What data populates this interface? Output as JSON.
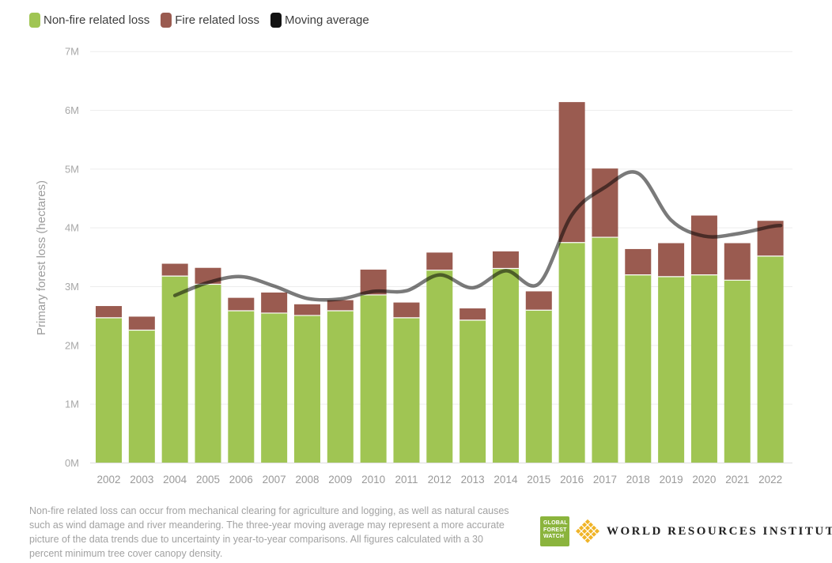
{
  "legend": {
    "items": [
      {
        "label": "Non-fire related loss",
        "swatch_color": "#a0c553"
      },
      {
        "label": "Fire related loss",
        "swatch_color": "#9a5b50"
      },
      {
        "label": "Moving average",
        "swatch_color": "#121212"
      }
    ]
  },
  "chart_data": {
    "type": "bar",
    "stacked": true,
    "title": "",
    "xlabel": "",
    "ylabel": "Primary forest loss (hectares)",
    "unit": "million hectares",
    "ylim": [
      0,
      7
    ],
    "y_ticks": [
      "0M",
      "1M",
      "2M",
      "3M",
      "4M",
      "5M",
      "6M",
      "7M"
    ],
    "grid": "horizontal",
    "legend_position": "top-left",
    "categories": [
      "2002",
      "2003",
      "2004",
      "2005",
      "2006",
      "2007",
      "2008",
      "2009",
      "2010",
      "2011",
      "2012",
      "2013",
      "2014",
      "2015",
      "2016",
      "2017",
      "2018",
      "2019",
      "2020",
      "2021",
      "2022"
    ],
    "series": [
      {
        "name": "Non-fire related loss",
        "type": "bar",
        "color": "#a0c553",
        "values": [
          2.47,
          2.26,
          3.18,
          3.04,
          2.59,
          2.55,
          2.51,
          2.59,
          2.86,
          2.47,
          3.28,
          2.43,
          3.31,
          2.6,
          3.75,
          3.84,
          3.2,
          3.17,
          3.2,
          3.11,
          3.52
        ]
      },
      {
        "name": "Fire related loss",
        "type": "bar",
        "color": "#9a5b50",
        "values": [
          0.2,
          0.23,
          0.21,
          0.28,
          0.22,
          0.35,
          0.19,
          0.18,
          0.43,
          0.26,
          0.3,
          0.2,
          0.29,
          0.32,
          2.39,
          1.17,
          0.44,
          0.57,
          1.01,
          0.63,
          0.6
        ]
      },
      {
        "name": "Moving average",
        "type": "line",
        "color": "#6b6b6b",
        "values": [
          null,
          null,
          2.85,
          3.07,
          3.17,
          3.01,
          2.8,
          2.79,
          2.92,
          2.93,
          3.2,
          2.98,
          3.27,
          3.05,
          4.22,
          4.69,
          4.93,
          4.13,
          3.86,
          3.9,
          4.02
        ]
      }
    ],
    "axis_colors": {
      "gridline": "#ededed",
      "baseline": "#dcdcdc",
      "tick_text": "#a8a8a8",
      "year_text": "#999999",
      "axis_title": "#9c9c9c"
    }
  },
  "footnote": {
    "text": "Non-fire related loss can occur from mechanical clearing for agriculture and logging, as well as natural causes such as wind damage and river meandering. The three-year moving average may represent a more accurate picture of the data trends due to uncertainty in year-to-year comparisons. All figures calculated with a 30 percent minimum tree cover canopy density."
  },
  "logos": {
    "gfw": {
      "lines": [
        "GLOBAL",
        "FOREST",
        "WATCH"
      ],
      "color": "#8bb43d"
    },
    "wri": {
      "text": "WORLD RESOURCES INSTITUTE",
      "icon_color": "#f0b428"
    }
  }
}
